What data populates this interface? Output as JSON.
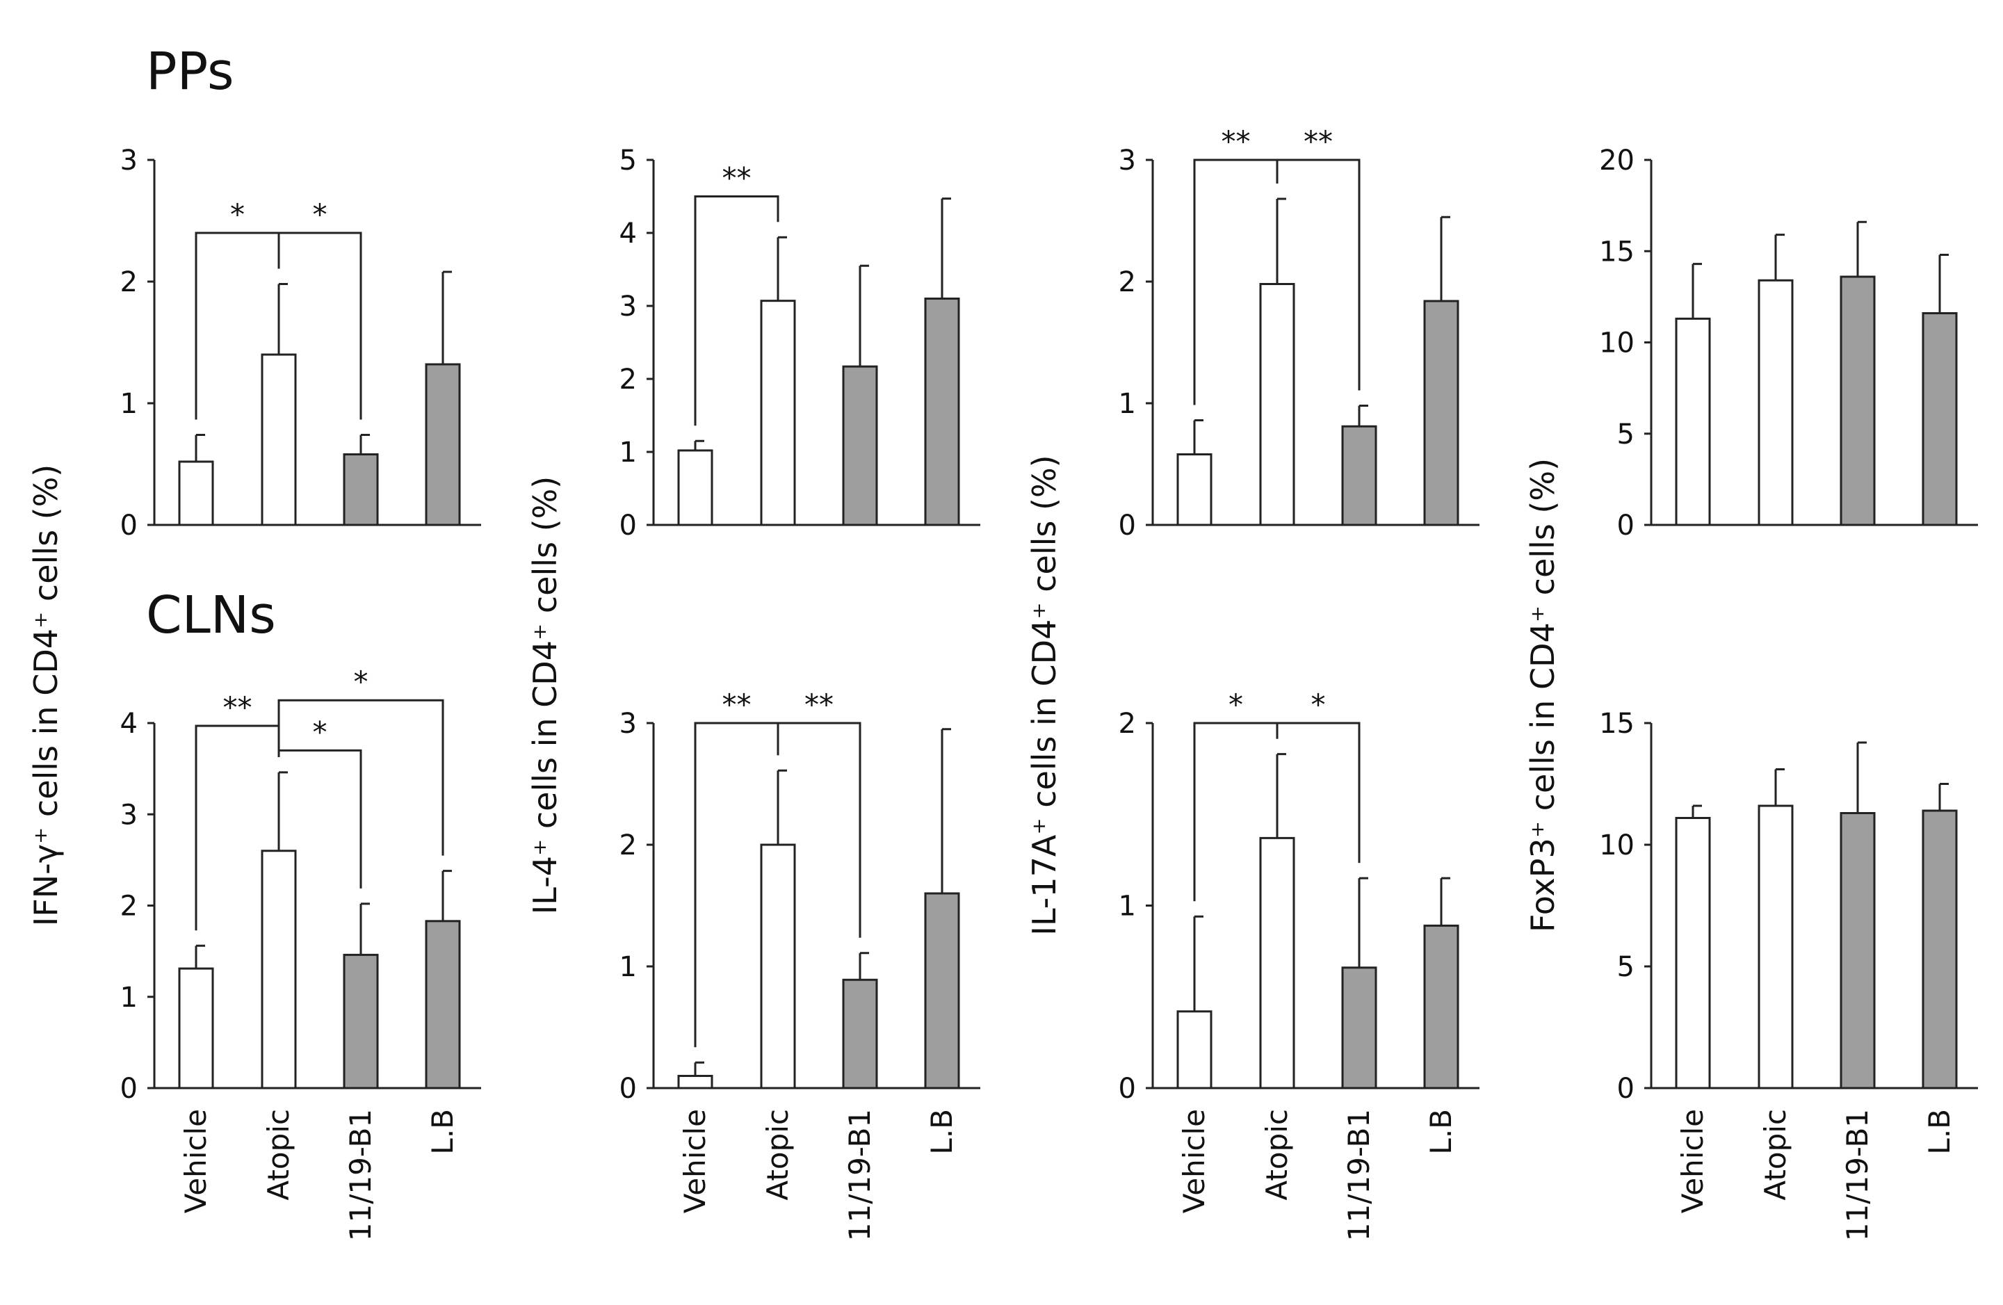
{
  "figure": {
    "sections": [
      "PPs",
      "CLNs"
    ],
    "categories": [
      "Vehicle",
      "Atopic",
      "11/19-B1",
      "L.B"
    ],
    "ylabels": [
      "IFN-γ⁺ cells in CD4⁺ cells (%)",
      "IL-4⁺ cells in CD4⁺ cells (%)",
      "IL-17A⁺ cells in CD4⁺ cells (%)",
      "FoxP3⁺ cells in CD4⁺ cells (%)"
    ],
    "colors": {
      "open": "#ffffff",
      "gray": "#9e9e9e",
      "stroke": "#222222"
    },
    "bar_fills": [
      "open",
      "open",
      "gray",
      "gray"
    ]
  },
  "chart_data": [
    {
      "type": "bar",
      "section": "PPs",
      "ylabel": "IFN-γ⁺ cells in CD4⁺ cells (%)",
      "categories": [
        "Vehicle",
        "Atopic",
        "11/19-B1",
        "L.B"
      ],
      "values": [
        0.52,
        1.4,
        0.58,
        1.32
      ],
      "errors": [
        0.22,
        0.58,
        0.16,
        0.76
      ],
      "ylim": [
        0,
        3
      ],
      "yticks": [
        0,
        1,
        2,
        3
      ],
      "significance": [
        {
          "from": 0,
          "to": 1,
          "label": "*",
          "y": 2.4
        },
        {
          "from": 1,
          "to": 2,
          "label": "*",
          "y": 2.4
        }
      ]
    },
    {
      "type": "bar",
      "section": "PPs",
      "ylabel": "IL-4⁺ cells in CD4⁺ cells (%)",
      "categories": [
        "Vehicle",
        "Atopic",
        "11/19-B1",
        "L.B"
      ],
      "values": [
        1.02,
        3.07,
        2.17,
        3.1
      ],
      "errors": [
        0.13,
        0.87,
        1.38,
        1.37
      ],
      "ylim": [
        0,
        5
      ],
      "yticks": [
        0,
        1,
        2,
        3,
        4,
        5
      ],
      "significance": [
        {
          "from": 0,
          "to": 1,
          "label": "**",
          "y": 4.5
        }
      ]
    },
    {
      "type": "bar",
      "section": "PPs",
      "ylabel": "IL-17A⁺ cells in CD4⁺ cells (%)",
      "categories": [
        "Vehicle",
        "Atopic",
        "11/19-B1",
        "L.B"
      ],
      "values": [
        0.58,
        1.98,
        0.81,
        1.84
      ],
      "errors": [
        0.28,
        0.7,
        0.17,
        0.69
      ],
      "ylim": [
        0,
        3
      ],
      "yticks": [
        0,
        1,
        2,
        3
      ],
      "significance": [
        {
          "from": 0,
          "to": 1,
          "label": "**",
          "y": 3.0
        },
        {
          "from": 1,
          "to": 2,
          "label": "**",
          "y": 3.0
        }
      ]
    },
    {
      "type": "bar",
      "section": "PPs",
      "ylabel": "FoxP3⁺ cells in CD4⁺ cells (%)",
      "categories": [
        "Vehicle",
        "Atopic",
        "11/19-B1",
        "L.B"
      ],
      "values": [
        11.3,
        13.4,
        13.6,
        11.6
      ],
      "errors": [
        3.0,
        2.5,
        3.0,
        3.2
      ],
      "ylim": [
        0,
        20
      ],
      "yticks": [
        0,
        5,
        10,
        15,
        20
      ],
      "significance": []
    },
    {
      "type": "bar",
      "section": "CLNs",
      "ylabel": "IFN-γ⁺ cells in CD4⁺ cells (%)",
      "categories": [
        "Vehicle",
        "Atopic",
        "11/19-B1",
        "L.B"
      ],
      "values": [
        1.31,
        2.6,
        1.46,
        1.83
      ],
      "errors": [
        0.25,
        0.86,
        0.56,
        0.55
      ],
      "ylim": [
        0,
        4
      ],
      "yticks": [
        0,
        1,
        2,
        3,
        4
      ],
      "significance": [
        {
          "from": 0,
          "to": 1,
          "label": "**",
          "y": 3.97
        },
        {
          "from": 1,
          "to": 2,
          "label": "*",
          "y": 3.7
        },
        {
          "from": 1,
          "to": 3,
          "label": "*",
          "y": 4.25
        }
      ]
    },
    {
      "type": "bar",
      "section": "CLNs",
      "ylabel": "IL-4⁺ cells in CD4⁺ cells (%)",
      "categories": [
        "Vehicle",
        "Atopic",
        "11/19-B1",
        "L.B"
      ],
      "values": [
        0.1,
        2.0,
        0.89,
        1.6
      ],
      "errors": [
        0.11,
        0.61,
        0.22,
        1.35
      ],
      "ylim": [
        0,
        3
      ],
      "yticks": [
        0,
        1,
        2,
        3
      ],
      "significance": [
        {
          "from": 0,
          "to": 1,
          "label": "**",
          "y": 3.0
        },
        {
          "from": 1,
          "to": 2,
          "label": "**",
          "y": 3.0
        }
      ]
    },
    {
      "type": "bar",
      "section": "CLNs",
      "ylabel": "IL-17A⁺ cells in CD4⁺ cells (%)",
      "categories": [
        "Vehicle",
        "Atopic",
        "11/19-B1",
        "L.B"
      ],
      "values": [
        0.42,
        1.37,
        0.66,
        0.89
      ],
      "errors": [
        0.52,
        0.46,
        0.49,
        0.26
      ],
      "ylim": [
        0,
        2
      ],
      "yticks": [
        0,
        1,
        2
      ],
      "significance": [
        {
          "from": 0,
          "to": 1,
          "label": "*",
          "y": 2.0
        },
        {
          "from": 1,
          "to": 2,
          "label": "*",
          "y": 2.0
        }
      ]
    },
    {
      "type": "bar",
      "section": "CLNs",
      "ylabel": "FoxP3⁺ cells in CD4⁺ cells (%)",
      "categories": [
        "Vehicle",
        "Atopic",
        "11/19-B1",
        "L.B"
      ],
      "values": [
        11.1,
        11.6,
        11.3,
        11.4
      ],
      "errors": [
        0.5,
        1.5,
        2.9,
        1.1
      ],
      "ylim": [
        0,
        15
      ],
      "yticks": [
        0,
        5,
        10,
        15
      ],
      "significance": []
    }
  ]
}
